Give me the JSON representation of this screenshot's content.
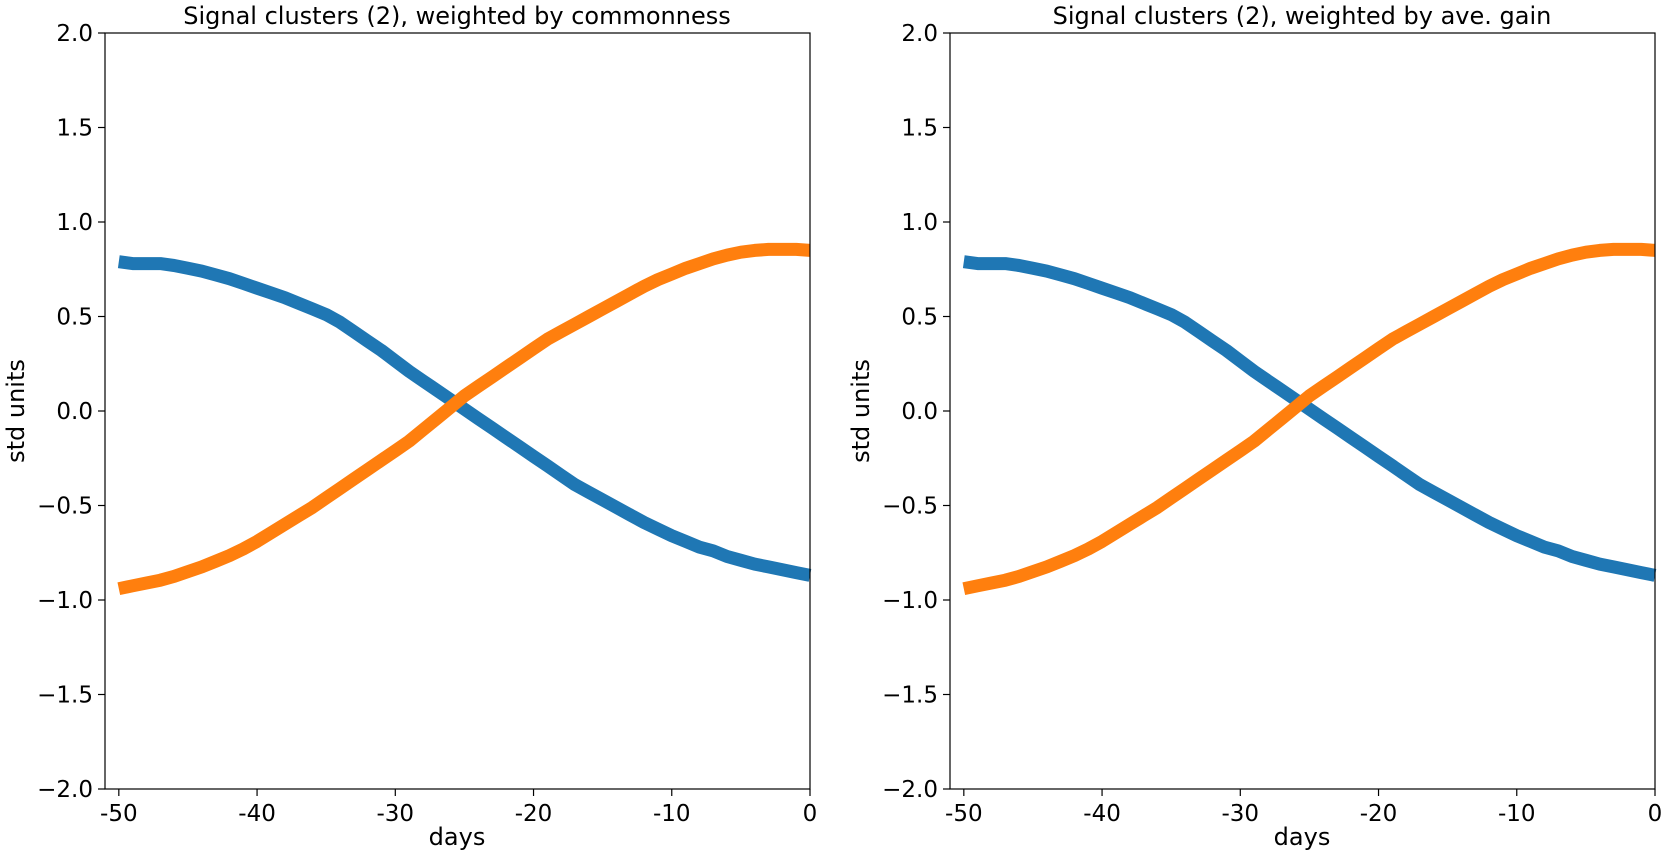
{
  "chart_data": [
    {
      "type": "line",
      "title": "Signal clusters (2), weighted by commonness",
      "xlabel": "days",
      "ylabel": "std units",
      "xlim": [
        -51,
        0
      ],
      "ylim": [
        -2.0,
        2.0
      ],
      "xticks": [
        -50,
        -40,
        -30,
        -20,
        -10,
        0
      ],
      "xtick_labels": [
        "-50",
        "-40",
        "-30",
        "-20",
        "-10",
        "0"
      ],
      "yticks": [
        2.0,
        1.5,
        1.0,
        0.5,
        0.0,
        -0.5,
        -1.0,
        -1.5,
        -2.0
      ],
      "ytick_labels": [
        "2.0",
        "1.5",
        "1.0",
        "0.5",
        "0.0",
        "−0.5",
        "−1.0",
        "−1.5",
        "−2.0"
      ],
      "grid": false,
      "x": [
        -50,
        -49,
        -48,
        -47,
        -46,
        -45,
        -44,
        -43,
        -42,
        -41,
        -40,
        -39,
        -38,
        -37,
        -36,
        -35,
        -34,
        -33,
        -32,
        -31,
        -30,
        -29,
        -28,
        -27,
        -26,
        -25,
        -24,
        -23,
        -22,
        -21,
        -20,
        -19,
        -18,
        -17,
        -16,
        -15,
        -14,
        -13,
        -12,
        -11,
        -10,
        -9,
        -8,
        -7,
        -6,
        -5,
        -4,
        -3,
        -2,
        -1,
        0
      ],
      "series": [
        {
          "color": "#1f77b4",
          "values": [
            0.79,
            0.78,
            0.78,
            0.78,
            0.77,
            0.755,
            0.74,
            0.72,
            0.7,
            0.675,
            0.65,
            0.625,
            0.6,
            0.57,
            0.54,
            0.51,
            0.47,
            0.42,
            0.37,
            0.32,
            0.265,
            0.21,
            0.16,
            0.11,
            0.06,
            0.01,
            -0.04,
            -0.09,
            -0.14,
            -0.19,
            -0.24,
            -0.29,
            -0.34,
            -0.39,
            -0.43,
            -0.47,
            -0.51,
            -0.55,
            -0.59,
            -0.625,
            -0.66,
            -0.69,
            -0.72,
            -0.74,
            -0.77,
            -0.79,
            -0.81,
            -0.825,
            -0.84,
            -0.855,
            -0.87
          ]
        },
        {
          "color": "#ff7f0e",
          "values": [
            -0.94,
            -0.925,
            -0.91,
            -0.895,
            -0.875,
            -0.85,
            -0.825,
            -0.795,
            -0.765,
            -0.73,
            -0.69,
            -0.645,
            -0.6,
            -0.555,
            -0.51,
            -0.46,
            -0.41,
            -0.36,
            -0.31,
            -0.26,
            -0.21,
            -0.16,
            -0.1,
            -0.04,
            0.02,
            0.08,
            0.13,
            0.18,
            0.23,
            0.28,
            0.33,
            0.38,
            0.42,
            0.46,
            0.5,
            0.54,
            0.58,
            0.62,
            0.66,
            0.695,
            0.725,
            0.755,
            0.78,
            0.805,
            0.825,
            0.84,
            0.85,
            0.855,
            0.855,
            0.855,
            0.85
          ]
        }
      ]
    },
    {
      "type": "line",
      "title": "Signal clusters (2), weighted by ave. gain",
      "xlabel": "days",
      "ylabel": "std units",
      "xlim": [
        -51,
        0
      ],
      "ylim": [
        -2.0,
        2.0
      ],
      "xticks": [
        -50,
        -40,
        -30,
        -20,
        -10,
        0
      ],
      "xtick_labels": [
        "-50",
        "-40",
        "-30",
        "-20",
        "-10",
        "0"
      ],
      "yticks": [
        2.0,
        1.5,
        1.0,
        0.5,
        0.0,
        -0.5,
        -1.0,
        -1.5,
        -2.0
      ],
      "ytick_labels": [
        "2.0",
        "1.5",
        "1.0",
        "0.5",
        "0.0",
        "−0.5",
        "−1.0",
        "−1.5",
        "−2.0"
      ],
      "grid": false,
      "x": [
        -50,
        -49,
        -48,
        -47,
        -46,
        -45,
        -44,
        -43,
        -42,
        -41,
        -40,
        -39,
        -38,
        -37,
        -36,
        -35,
        -34,
        -33,
        -32,
        -31,
        -30,
        -29,
        -28,
        -27,
        -26,
        -25,
        -24,
        -23,
        -22,
        -21,
        -20,
        -19,
        -18,
        -17,
        -16,
        -15,
        -14,
        -13,
        -12,
        -11,
        -10,
        -9,
        -8,
        -7,
        -6,
        -5,
        -4,
        -3,
        -2,
        -1,
        0
      ],
      "series": [
        {
          "color": "#1f77b4",
          "values": [
            0.79,
            0.78,
            0.78,
            0.78,
            0.77,
            0.755,
            0.74,
            0.72,
            0.7,
            0.675,
            0.65,
            0.625,
            0.6,
            0.57,
            0.54,
            0.51,
            0.47,
            0.42,
            0.37,
            0.32,
            0.265,
            0.21,
            0.16,
            0.11,
            0.06,
            0.01,
            -0.04,
            -0.09,
            -0.14,
            -0.19,
            -0.24,
            -0.29,
            -0.34,
            -0.39,
            -0.43,
            -0.47,
            -0.51,
            -0.55,
            -0.59,
            -0.625,
            -0.66,
            -0.69,
            -0.72,
            -0.74,
            -0.77,
            -0.79,
            -0.81,
            -0.825,
            -0.84,
            -0.855,
            -0.87
          ]
        },
        {
          "color": "#ff7f0e",
          "values": [
            -0.94,
            -0.925,
            -0.91,
            -0.895,
            -0.875,
            -0.85,
            -0.825,
            -0.795,
            -0.765,
            -0.73,
            -0.69,
            -0.645,
            -0.6,
            -0.555,
            -0.51,
            -0.46,
            -0.41,
            -0.36,
            -0.31,
            -0.26,
            -0.21,
            -0.16,
            -0.1,
            -0.04,
            0.02,
            0.08,
            0.13,
            0.18,
            0.23,
            0.28,
            0.33,
            0.38,
            0.42,
            0.46,
            0.5,
            0.54,
            0.58,
            0.62,
            0.66,
            0.695,
            0.725,
            0.755,
            0.78,
            0.805,
            0.825,
            0.84,
            0.85,
            0.855,
            0.855,
            0.855,
            0.85
          ]
        }
      ]
    }
  ]
}
